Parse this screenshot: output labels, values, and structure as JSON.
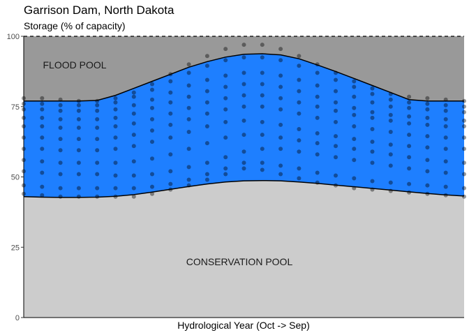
{
  "chart_data": {
    "type": "scatter",
    "title": "Garrison Dam, North Dakota",
    "subtitle": "Storage (% of capacity)",
    "xlabel": "Hydrological Year (Oct -> Sep)",
    "ylabel": "",
    "ylim": [
      0,
      100
    ],
    "y_ticks": [
      0,
      25,
      50,
      75,
      100
    ],
    "grid": false,
    "legend": "none",
    "x_months": 12,
    "pools": {
      "flood_label": "FLOOD POOL",
      "conservation_label": "CONSERVATION POOL",
      "full_capacity": 100,
      "upper_rule_curve": {
        "x": [
          0,
          0.5,
          1,
          1.5,
          2,
          2.5,
          3,
          3.5,
          4,
          4.5,
          5,
          5.5,
          6,
          6.5,
          7,
          7.5,
          8,
          8.5,
          9,
          9.5,
          10,
          10.5,
          11,
          11.5,
          12
        ],
        "y": [
          77,
          77,
          77,
          77,
          77.2,
          79,
          81.5,
          84,
          86.5,
          89,
          91,
          92.6,
          93.6,
          93.8,
          93.4,
          92,
          89.8,
          87.5,
          85,
          82.5,
          80,
          77.5,
          77,
          77,
          77
        ]
      },
      "lower_rule_curve": {
        "x": [
          0,
          0.5,
          1,
          1.5,
          2,
          2.5,
          3,
          3.5,
          4,
          4.5,
          5,
          5.5,
          6,
          6.5,
          7,
          7.5,
          8,
          8.5,
          9,
          9.5,
          10,
          10.5,
          11,
          11.5,
          12
        ],
        "y": [
          43,
          42.8,
          42.7,
          42.7,
          42.8,
          43.1,
          43.7,
          44.6,
          45.6,
          46.6,
          47.5,
          48.2,
          48.6,
          48.7,
          48.6,
          48.2,
          47.7,
          47.1,
          46.5,
          45.9,
          45.3,
          44.7,
          44.1,
          43.6,
          43.2
        ]
      }
    },
    "series": [
      {
        "x": [
          0,
          0.5,
          1,
          1.5,
          2,
          2.5,
          3,
          3.5,
          4,
          4.5,
          5,
          5.5,
          6,
          6.5,
          7,
          7.5,
          8,
          8.5,
          9,
          9.5,
          10,
          10.5,
          11,
          11.5,
          12
        ],
        "y": [
          44,
          43.5,
          43,
          43,
          43,
          43,
          43,
          44,
          45.5,
          47,
          49,
          51,
          53,
          52.5,
          51,
          49.5,
          48,
          47,
          46,
          45.5,
          45,
          44.5,
          44,
          43.5,
          43
        ]
      },
      {
        "x": [
          0,
          0.5,
          1,
          1.5,
          2,
          2.5,
          3,
          3.5,
          4,
          4.5,
          5,
          5.5,
          6,
          6.5,
          7,
          7.5,
          8,
          8.5,
          9,
          9.5,
          10,
          10.5,
          11,
          11.5,
          12
        ],
        "y": [
          47,
          46.5,
          46,
          46,
          46,
          46,
          46,
          46.5,
          47.5,
          49,
          51,
          53,
          55,
          55,
          54,
          53,
          51.5,
          50.5,
          49.5,
          48.5,
          48,
          47.5,
          47,
          46.5,
          46
        ]
      },
      {
        "x": [
          0,
          0.5,
          1,
          1.5,
          2,
          2.5,
          3,
          3.5,
          4,
          4.5,
          5,
          5.5,
          6,
          6.5,
          7,
          7.5,
          8,
          8.5,
          9,
          9.5,
          10,
          10.5,
          11,
          11.5,
          12
        ],
        "y": [
          52,
          51.5,
          51,
          51,
          51,
          50.5,
          50.5,
          51,
          52,
          53.5,
          55,
          57,
          59,
          60,
          60,
          59,
          58,
          57,
          56,
          55,
          54,
          53,
          52,
          51.5,
          51
        ]
      },
      {
        "x": [
          0,
          0.5,
          1,
          1.5,
          2,
          2.5,
          3,
          3.5,
          4,
          4.5,
          5,
          5.5,
          6,
          6.5,
          7,
          7.5,
          8,
          8.5,
          9,
          9.5,
          10,
          10.5,
          11,
          11.5,
          12
        ],
        "y": [
          56,
          55.5,
          55,
          55,
          55,
          55,
          55.5,
          56.5,
          58,
          60,
          62,
          64,
          65,
          65,
          64,
          63,
          62,
          61,
          60,
          59,
          58,
          57,
          56,
          55.5,
          55
        ]
      },
      {
        "x": [
          0,
          0.5,
          1,
          1.5,
          2,
          2.5,
          3,
          3.5,
          4,
          4.5,
          5,
          5.5,
          6,
          6.5,
          7,
          7.5,
          8,
          8.5,
          9,
          9.5,
          10,
          10.5,
          11,
          11.5,
          12
        ],
        "y": [
          60,
          60,
          59.5,
          59.5,
          59.5,
          60,
          61,
          62.5,
          64,
          66,
          68,
          69.5,
          70,
          69.5,
          68.5,
          67,
          65.5,
          64.5,
          63.5,
          62.5,
          61.5,
          61,
          60.5,
          60,
          60
        ]
      },
      {
        "x": [
          0,
          0.5,
          1,
          1.5,
          2,
          2.5,
          3,
          3.5,
          4,
          4.5,
          5,
          5.5,
          6,
          6.5,
          7,
          7.5,
          8,
          8.5,
          9,
          9.5,
          10,
          10.5,
          11,
          11.5,
          12
        ],
        "y": [
          64,
          64,
          63.5,
          63.5,
          63.5,
          64,
          65,
          66.5,
          68.5,
          70.5,
          72.5,
          74,
          75,
          75,
          74,
          72.5,
          71,
          69.5,
          68,
          67,
          66,
          65,
          64.5,
          64,
          64
        ]
      },
      {
        "x": [
          0,
          0.5,
          1,
          1.5,
          2,
          2.5,
          3,
          3.5,
          4,
          4.5,
          5,
          5.5,
          6,
          6.5,
          7,
          7.5,
          8,
          8.5,
          9,
          9.5,
          10,
          10.5,
          11,
          11.5,
          12
        ],
        "y": [
          68,
          68,
          67.5,
          67.5,
          67.5,
          68,
          69,
          70.5,
          72.5,
          74.5,
          76.5,
          78,
          79,
          79,
          78,
          76.5,
          75,
          73.5,
          72,
          71,
          70,
          69,
          68.5,
          68,
          68
        ]
      },
      {
        "x": [
          0,
          0.5,
          1,
          1.5,
          2,
          2.5,
          3,
          3.5,
          4,
          4.5,
          5,
          5.5,
          6,
          6.5,
          7,
          7.5,
          8,
          8.5,
          9,
          9.5,
          10,
          10.5,
          11,
          11.5,
          12
        ],
        "y": [
          71,
          71,
          70.5,
          70.5,
          70.5,
          71,
          72.5,
          74.5,
          76.5,
          78.5,
          80.5,
          82,
          83,
          83,
          82,
          80.5,
          78.5,
          76.5,
          74.5,
          73,
          72,
          71.5,
          71,
          70.5,
          70
        ]
      },
      {
        "x": [
          0,
          0.5,
          1,
          1.5,
          2,
          2.5,
          3,
          3.5,
          4,
          4.5,
          5,
          5.5,
          6,
          6.5,
          7,
          7.5,
          8,
          8.5,
          9,
          9.5,
          10,
          10.5,
          11,
          11.5,
          12
        ],
        "y": [
          74,
          74,
          73.5,
          73.5,
          73.5,
          74,
          75.5,
          77.5,
          80,
          82.5,
          84.5,
          86,
          87,
          87,
          86,
          84.5,
          82.5,
          80.5,
          78.5,
          76.5,
          75,
          74.5,
          74,
          73.5,
          73
        ]
      },
      {
        "x": [
          0,
          0.5,
          1,
          1.5,
          2,
          2.5,
          3,
          3.5,
          4,
          4.5,
          5,
          5.5,
          6,
          6.5,
          7,
          7.5,
          8,
          8.5,
          9,
          9.5,
          10,
          10.5,
          11,
          11.5,
          12
        ],
        "y": [
          76,
          76,
          75.5,
          75.5,
          75.5,
          76.5,
          78.5,
          81,
          84,
          87,
          89.5,
          91.5,
          92.5,
          92.5,
          91.5,
          89.5,
          87,
          84.5,
          82,
          79.5,
          77.5,
          76.5,
          76,
          75.5,
          75
        ]
      },
      {
        "x": [
          0,
          0.5,
          1,
          1.5,
          2,
          2.5,
          3,
          3.5,
          4,
          4.5,
          5,
          5.5,
          6,
          6.5,
          7,
          7.5,
          8,
          8.5,
          9,
          9.5,
          10,
          10.5,
          11,
          11.5,
          12
        ],
        "y": [
          78,
          78,
          77.5,
          77,
          77,
          78,
          80,
          83,
          86.5,
          90,
          93,
          95.5,
          97,
          97,
          95.5,
          93,
          90,
          87,
          84,
          81.5,
          79.5,
          78.5,
          78,
          77.5,
          77
        ]
      }
    ]
  }
}
